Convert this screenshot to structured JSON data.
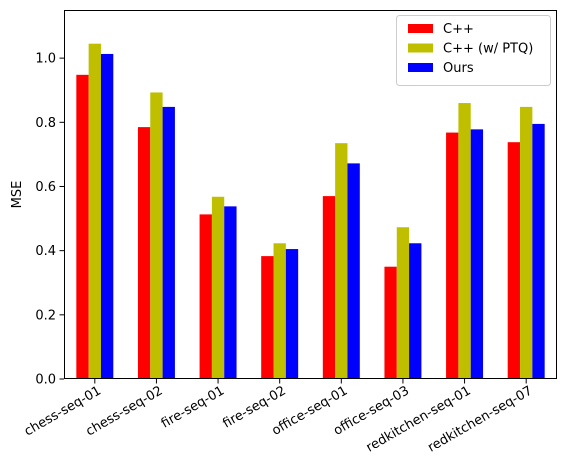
{
  "chart_data": {
    "type": "bar",
    "title": "",
    "xlabel": "",
    "ylabel": "MSE",
    "ylim": [
      0,
      1.15
    ],
    "yticks": [
      0.0,
      0.2,
      0.4,
      0.6,
      0.8,
      1.0
    ],
    "ytick_labels": [
      "0.0",
      "0.2",
      "0.4",
      "0.6",
      "0.8",
      "1.0"
    ],
    "grid": false,
    "legend_position": "top-right",
    "categories": [
      "chess-seq-01",
      "chess-seq-02",
      "fire-seq-01",
      "fire-seq-02",
      "office-seq-01",
      "office-seq-03",
      "redkitchen-seq-01",
      "redkitchen-seq-07"
    ],
    "series": [
      {
        "name": "C++",
        "color": "#ff0000",
        "values": [
          0.948,
          0.785,
          0.513,
          0.383,
          0.57,
          0.35,
          0.768,
          0.738
        ]
      },
      {
        "name": "C++ (w/ PTQ)",
        "color": "#bfbf00",
        "values": [
          1.045,
          0.893,
          0.568,
          0.423,
          0.735,
          0.473,
          0.86,
          0.848
        ]
      },
      {
        "name": "Ours",
        "color": "#0000ff",
        "values": [
          1.013,
          0.848,
          0.538,
          0.405,
          0.672,
          0.423,
          0.778,
          0.795
        ]
      }
    ]
  }
}
